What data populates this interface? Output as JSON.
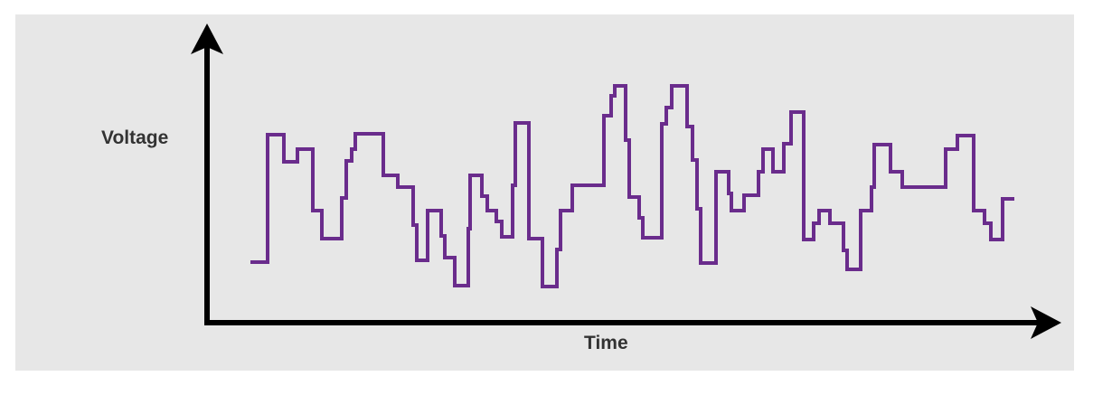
{
  "diagram": {
    "ylabel": "Voltage",
    "xlabel": "Time",
    "panel_color": "#e7e7e7",
    "axis_color": "#000000",
    "signal_color": "#6a2c8c",
    "label_color": "#333333",
    "signal_type": "stepped-waveform"
  }
}
